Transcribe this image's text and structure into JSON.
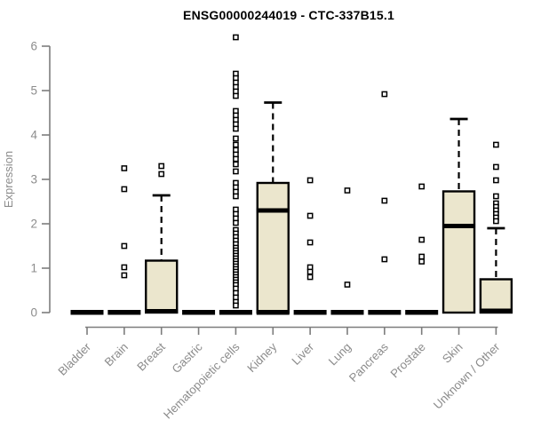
{
  "chart_data": {
    "type": "boxplot",
    "title": "ENSG00000244019 - CTC-337B15.1",
    "ylabel": "Expression",
    "ylim": [
      0,
      6
    ],
    "yticks": [
      0,
      1,
      2,
      3,
      4,
      5,
      6
    ],
    "grid": false,
    "legend": "none",
    "colors": {
      "box_fill": "#ebe6cd",
      "outline": "#000000",
      "axis": "#7d7d7d",
      "labels": "#8c8c8c",
      "title": "#000000",
      "background": "#ffffff"
    },
    "categories": [
      "Bladder",
      "Brain",
      "Breast",
      "Gastric",
      "Hematopoietic cells",
      "Kidney",
      "Liver",
      "Lung",
      "Pancreas",
      "Prostate",
      "Skin",
      "Unknown / Other"
    ],
    "boxes": [
      {
        "category": "Bladder",
        "q1": 0,
        "median": 0,
        "q3": 0,
        "whisker_low": 0,
        "whisker_high": 0,
        "base_bar": true,
        "outliers": []
      },
      {
        "category": "Brain",
        "q1": 0,
        "median": 0,
        "q3": 0,
        "whisker_low": 0,
        "whisker_high": 0,
        "base_bar": true,
        "outliers": [
          3.25,
          2.78,
          1.5,
          1.02,
          0.84
        ]
      },
      {
        "category": "Breast",
        "q1": 0,
        "median": 0.03,
        "q3": 1.17,
        "whisker_low": 0,
        "whisker_high": 2.64,
        "base_bar": false,
        "outliers": [
          3.3,
          3.12
        ]
      },
      {
        "category": "Gastric",
        "q1": 0,
        "median": 0,
        "q3": 0,
        "whisker_low": 0,
        "whisker_high": 0,
        "base_bar": true,
        "outliers": []
      },
      {
        "category": "Hematopoietic cells",
        "q1": 0,
        "median": 0,
        "q3": 0,
        "whisker_low": 0,
        "whisker_high": 0,
        "base_bar": true,
        "outliers": [
          6.2,
          5.38,
          5.28,
          5.18,
          5.08,
          4.98,
          4.88,
          4.54,
          4.44,
          4.34,
          4.24,
          4.14,
          3.92,
          3.78,
          3.66,
          3.56,
          3.46,
          3.34,
          3.18,
          2.92,
          2.82,
          2.72,
          2.62,
          2.32,
          2.22,
          2.12,
          2.02,
          1.86,
          1.78,
          1.7,
          1.62,
          1.54,
          1.46,
          1.4,
          1.34,
          1.28,
          1.22,
          1.16,
          1.1,
          1.04,
          0.98,
          0.92,
          0.86,
          0.8,
          0.74,
          0.68,
          0.62,
          0.54,
          0.44,
          0.34,
          0.24,
          0.16
        ]
      },
      {
        "category": "Kidney",
        "q1": 0,
        "median": 2.3,
        "q3": 2.92,
        "whisker_low": 0,
        "whisker_high": 4.73,
        "base_bar": true,
        "outliers": []
      },
      {
        "category": "Liver",
        "q1": 0,
        "median": 0,
        "q3": 0,
        "whisker_low": 0,
        "whisker_high": 0,
        "base_bar": true,
        "outliers": [
          2.98,
          2.18,
          1.58,
          1.02,
          0.92,
          0.8
        ]
      },
      {
        "category": "Lung",
        "q1": 0,
        "median": 0,
        "q3": 0,
        "whisker_low": 0,
        "whisker_high": 0,
        "base_bar": true,
        "outliers": [
          2.75,
          0.63
        ]
      },
      {
        "category": "Pancreas",
        "q1": 0,
        "median": 0,
        "q3": 0,
        "whisker_low": 0,
        "whisker_high": 0,
        "base_bar": true,
        "outliers": [
          4.92,
          2.52,
          1.2
        ]
      },
      {
        "category": "Prostate",
        "q1": 0,
        "median": 0,
        "q3": 0,
        "whisker_low": 0,
        "whisker_high": 0,
        "base_bar": true,
        "outliers": [
          2.84,
          1.64,
          1.26,
          1.15
        ]
      },
      {
        "category": "Skin",
        "q1": 0,
        "median": 1.95,
        "q3": 2.73,
        "whisker_low": 0,
        "whisker_high": 4.36,
        "base_bar": false,
        "outliers": []
      },
      {
        "category": "Unknown / Other",
        "q1": 0,
        "median": 0.04,
        "q3": 0.75,
        "whisker_low": 0,
        "whisker_high": 1.9,
        "base_bar": false,
        "outliers": [
          3.78,
          3.28,
          2.98,
          2.62,
          2.46,
          2.38,
          2.3,
          2.22,
          2.14,
          2.06
        ]
      }
    ]
  }
}
